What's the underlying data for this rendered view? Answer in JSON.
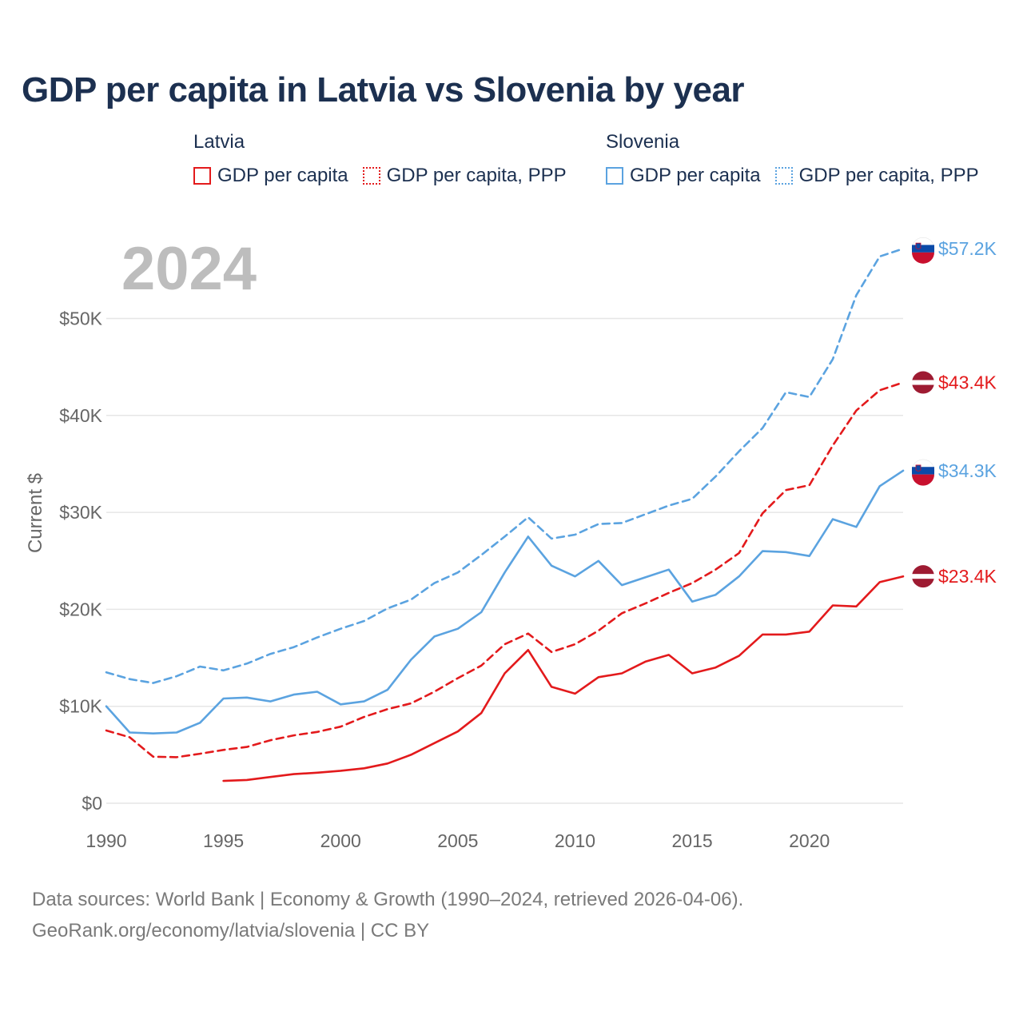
{
  "title": "GDP per capita in Latvia vs Slovenia by year",
  "legend": {
    "latvia": {
      "country": "Latvia",
      "items": [
        "GDP per capita",
        "GDP per capita, PPP"
      ]
    },
    "slovenia": {
      "country": "Slovenia",
      "items": [
        "GDP per capita",
        "GDP per capita, PPP"
      ]
    }
  },
  "year_label": "2024",
  "footer": {
    "line1": "Data sources: World Bank | Economy & Growth (1990–2024, retrieved 2026-04-06).",
    "line2": "GeoRank.org/economy/latvia/slovenia | CC BY"
  },
  "colors": {
    "latvia": "#e31a1c",
    "slovenia": "#5ba3e0",
    "title": "#1c3050",
    "axis_text": "#666666",
    "grid": "#e6e6e6",
    "year": "#bdbdbd"
  },
  "chart_data": {
    "type": "line",
    "title": "GDP per capita in Latvia vs Slovenia by year",
    "xlabel": "",
    "ylabel": "Current $",
    "xlim": [
      1990,
      2024
    ],
    "ylim": [
      0,
      57500
    ],
    "x_ticks": [
      1990,
      1995,
      2000,
      2005,
      2010,
      2015,
      2020
    ],
    "x_tick_labels": [
      "1990",
      "1995",
      "2000",
      "2005",
      "2010",
      "2015",
      "2020"
    ],
    "y_ticks": [
      0,
      10000,
      20000,
      30000,
      40000,
      50000
    ],
    "y_tick_labels": [
      "$0",
      "$10K",
      "$20K",
      "$30K",
      "$40K",
      "$50K"
    ],
    "grid": true,
    "series": [
      {
        "name": "Slovenia GDP per capita, PPP",
        "country": "slovenia",
        "style": "dashed",
        "end_label": "$57.2K",
        "x": [
          1990,
          1991,
          1992,
          1993,
          1994,
          1995,
          1996,
          1997,
          1998,
          1999,
          2000,
          2001,
          2002,
          2003,
          2004,
          2005,
          2006,
          2007,
          2008,
          2009,
          2010,
          2011,
          2012,
          2013,
          2014,
          2015,
          2016,
          2017,
          2018,
          2019,
          2020,
          2021,
          2022,
          2023,
          2024
        ],
        "values": [
          13500,
          12800,
          12400,
          13100,
          14100,
          13700,
          14400,
          15400,
          16100,
          17100,
          18000,
          18800,
          20100,
          21000,
          22700,
          23800,
          25600,
          27500,
          29500,
          27300,
          27700,
          28800,
          28900,
          29800,
          30700,
          31400,
          33700,
          36300,
          38700,
          42400,
          41900,
          45800,
          52400,
          56400,
          57200
        ]
      },
      {
        "name": "Latvia GDP per capita, PPP",
        "country": "latvia",
        "style": "dashed",
        "end_label": "$43.4K",
        "x": [
          1990,
          1991,
          1992,
          1993,
          1994,
          1995,
          1996,
          1997,
          1998,
          1999,
          2000,
          2001,
          2002,
          2003,
          2004,
          2005,
          2006,
          2007,
          2008,
          2009,
          2010,
          2011,
          2012,
          2013,
          2014,
          2015,
          2016,
          2017,
          2018,
          2019,
          2020,
          2021,
          2022,
          2023,
          2024
        ],
        "values": [
          7500,
          6800,
          4800,
          4750,
          5100,
          5500,
          5800,
          6500,
          7000,
          7350,
          7900,
          8900,
          9700,
          10300,
          11500,
          12900,
          14200,
          16400,
          17500,
          15600,
          16400,
          17800,
          19600,
          20600,
          21700,
          22700,
          24100,
          25800,
          29900,
          32300,
          32800,
          36900,
          40500,
          42600,
          43400
        ]
      },
      {
        "name": "Slovenia GDP per capita",
        "country": "slovenia",
        "style": "solid",
        "end_label": "$34.3K",
        "x": [
          1990,
          1991,
          1992,
          1993,
          1994,
          1995,
          1996,
          1997,
          1998,
          1999,
          2000,
          2001,
          2002,
          2003,
          2004,
          2005,
          2006,
          2007,
          2008,
          2009,
          2010,
          2011,
          2012,
          2013,
          2014,
          2015,
          2016,
          2017,
          2018,
          2019,
          2020,
          2021,
          2022,
          2023,
          2024
        ],
        "values": [
          10000,
          7300,
          7200,
          7300,
          8300,
          10800,
          10900,
          10500,
          11200,
          11500,
          10200,
          10500,
          11700,
          14800,
          17200,
          18000,
          19700,
          23800,
          27500,
          24500,
          23400,
          25000,
          22500,
          23300,
          24100,
          20800,
          21500,
          23400,
          26000,
          25900,
          25500,
          29300,
          28500,
          32700,
          34300
        ]
      },
      {
        "name": "Latvia GDP per capita",
        "country": "latvia",
        "style": "solid",
        "end_label": "$23.4K",
        "x": [
          1995,
          1996,
          1997,
          1998,
          1999,
          2000,
          2001,
          2002,
          2003,
          2004,
          2005,
          2006,
          2007,
          2008,
          2009,
          2010,
          2011,
          2012,
          2013,
          2014,
          2015,
          2016,
          2017,
          2018,
          2019,
          2020,
          2021,
          2022,
          2023,
          2024
        ],
        "values": [
          2300,
          2400,
          2700,
          3000,
          3150,
          3350,
          3600,
          4100,
          5000,
          6200,
          7400,
          9300,
          13400,
          15800,
          12000,
          11300,
          13000,
          13400,
          14600,
          15300,
          13400,
          14000,
          15200,
          17400,
          17400,
          17700,
          20400,
          20300,
          22800,
          23400
        ]
      }
    ]
  }
}
